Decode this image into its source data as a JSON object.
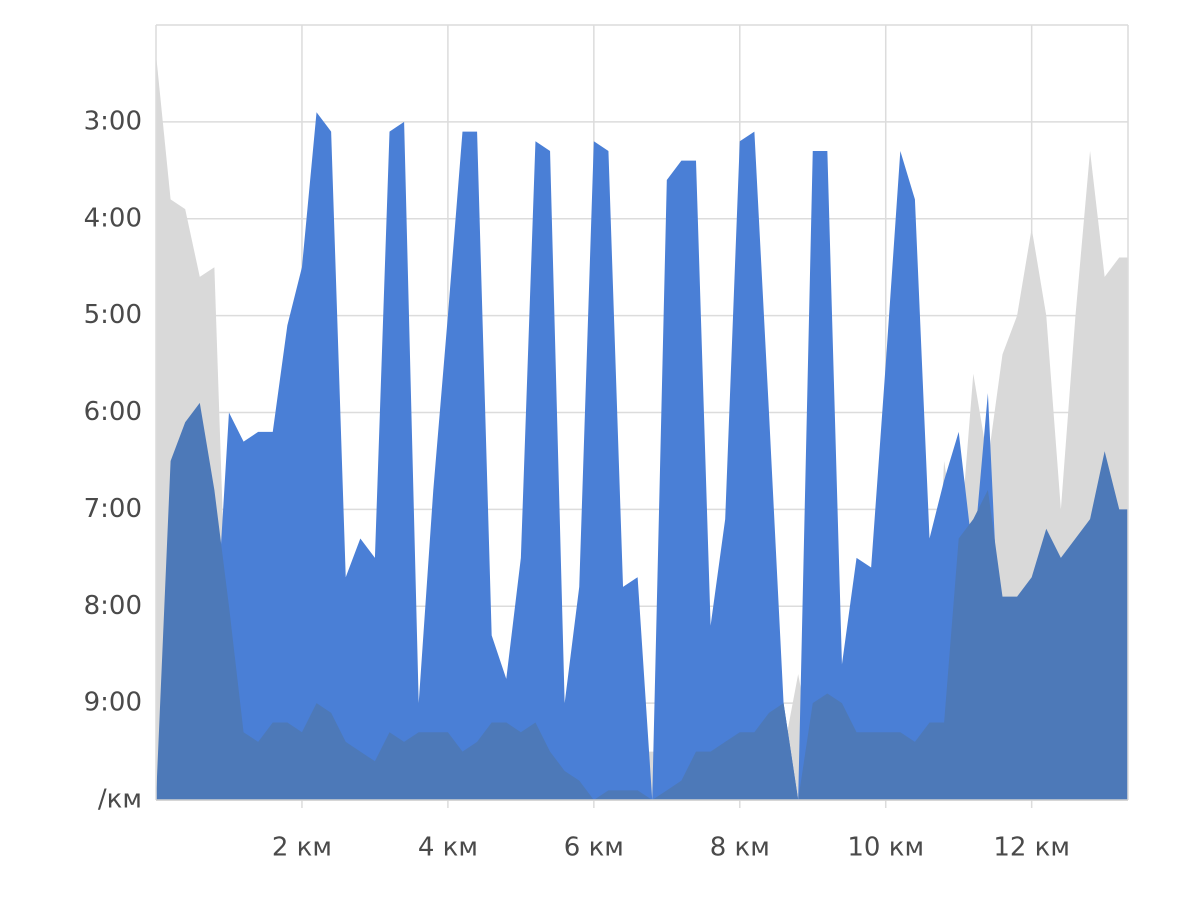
{
  "chart_data": {
    "type": "area",
    "x": [
      0,
      0.2,
      0.4,
      0.6,
      0.8,
      1.0,
      1.2,
      1.4,
      1.6,
      1.8,
      2.0,
      2.2,
      2.4,
      2.6,
      2.8,
      3.0,
      3.2,
      3.4,
      3.6,
      3.8,
      4.0,
      4.2,
      4.4,
      4.6,
      4.8,
      5.0,
      5.2,
      5.4,
      5.6,
      5.8,
      6.0,
      6.2,
      6.4,
      6.6,
      6.8,
      7.0,
      7.2,
      7.4,
      7.6,
      7.8,
      8.0,
      8.2,
      8.4,
      8.6,
      8.8,
      9.0,
      9.2,
      9.4,
      9.6,
      9.8,
      10.0,
      10.2,
      10.4,
      10.6,
      10.8,
      11.0,
      11.2,
      11.4,
      11.6,
      11.8,
      12.0,
      12.2,
      12.4,
      12.6,
      12.8,
      13.0,
      13.2
    ],
    "series": [
      {
        "color": "#d9d9d9",
        "values": [
          2.3,
          3.8,
          3.9,
          4.6,
          4.5,
          9.0,
          9.3,
          9.3,
          9.3,
          9.3,
          9.5,
          9.5,
          9.5,
          9.5,
          9.5,
          9.5,
          9.5,
          9.5,
          9.5,
          9.5,
          9.5,
          9.5,
          9.5,
          9.5,
          9.5,
          9.5,
          9.5,
          9.5,
          9.5,
          9.5,
          9.5,
          9.5,
          9.5,
          9.5,
          9.5,
          9.5,
          9.5,
          9.5,
          9.5,
          9.5,
          9.5,
          9.5,
          9.5,
          9.5,
          8.7,
          9.5,
          9.5,
          9.5,
          9.5,
          9.5,
          9.5,
          9.5,
          9.5,
          9.5,
          6.5,
          7.5,
          5.6,
          6.5,
          5.4,
          5.0,
          4.1,
          5.0,
          7.0,
          5.0,
          3.3,
          4.6,
          4.4
        ]
      },
      {
        "color": "#4a7fd6",
        "values": [
          10,
          9.0,
          8.5,
          8.5,
          8.5,
          6.0,
          6.3,
          6.2,
          6.2,
          5.1,
          4.5,
          2.9,
          3.1,
          7.7,
          7.3,
          7.5,
          3.1,
          3.0,
          9.0,
          6.8,
          5.0,
          3.1,
          3.1,
          8.3,
          8.75,
          7.5,
          3.2,
          3.3,
          9.0,
          7.8,
          3.2,
          3.3,
          7.8,
          7.7,
          10,
          3.6,
          3.4,
          3.4,
          8.2,
          7.1,
          3.2,
          3.1,
          6.0,
          9.0,
          10,
          3.3,
          3.3,
          8.6,
          7.5,
          7.6,
          5.5,
          3.3,
          3.8,
          7.3,
          6.7,
          6.2,
          7.5,
          5.8,
          9.0,
          9.5,
          9.5,
          9.5,
          9.5,
          9.5,
          9.5,
          9.5,
          9.5
        ]
      },
      {
        "color": "#4d79b8",
        "values": [
          10,
          6.5,
          6.1,
          5.9,
          6.8,
          8.0,
          9.3,
          9.4,
          9.2,
          9.2,
          9.3,
          9.0,
          9.1,
          9.4,
          9.5,
          9.6,
          9.3,
          9.4,
          9.3,
          9.3,
          9.3,
          9.5,
          9.4,
          9.2,
          9.2,
          9.3,
          9.2,
          9.5,
          9.7,
          9.8,
          10,
          9.9,
          9.9,
          9.9,
          10,
          9.9,
          9.8,
          9.5,
          9.5,
          9.4,
          9.3,
          9.3,
          9.1,
          9.0,
          10,
          9.0,
          8.9,
          9.0,
          9.3,
          9.3,
          9.3,
          9.3,
          9.4,
          9.2,
          9.2,
          7.3,
          7.1,
          6.8,
          7.9,
          7.9,
          7.7,
          7.2,
          7.5,
          7.3,
          7.1,
          6.4,
          7.0
        ]
      }
    ],
    "xlim": [
      0,
      13.32
    ],
    "xticks": [
      {
        "value": 2,
        "label": "2 км"
      },
      {
        "value": 4,
        "label": "4 км"
      },
      {
        "value": 6,
        "label": "6 км"
      },
      {
        "value": 8,
        "label": "8 км"
      },
      {
        "value": 10,
        "label": "10 км"
      },
      {
        "value": 12,
        "label": "12 км"
      }
    ],
    "ylim": [
      2,
      10
    ],
    "y_inverted": true,
    "yticks": [
      {
        "value": 3,
        "label": "3:00"
      },
      {
        "value": 4,
        "label": "4:00"
      },
      {
        "value": 5,
        "label": "5:00"
      },
      {
        "value": 6,
        "label": "6:00"
      },
      {
        "value": 7,
        "label": "7:00"
      },
      {
        "value": 8,
        "label": "8:00"
      },
      {
        "value": 9,
        "label": "9:00"
      },
      {
        "value": 10,
        "label": "/км"
      }
    ],
    "grid": true
  }
}
